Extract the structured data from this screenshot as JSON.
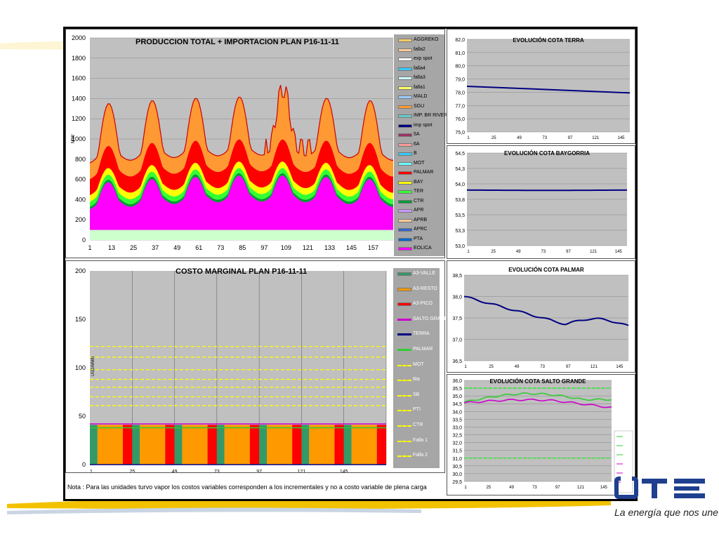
{
  "note": "Nota : Para las unidades turvo vapor los costos variables corresponden a los incrementales y no a costo variable de plena carga",
  "logo": {
    "text": "UTE",
    "slogan": "La energía que nos une"
  },
  "colors": {
    "plot_bg": "#c0c0c0",
    "legend_bg": "#a6a6a6",
    "line_navy": "#000080"
  },
  "chart_data": [
    {
      "type": "area",
      "title": "PRODUCCION TOTAL + IMPORTACION PLAN    P16-11-11",
      "ylabel": "MW",
      "ylim": [
        0,
        2000
      ],
      "yticks": [
        "0",
        "200",
        "400",
        "600",
        "800",
        "1000",
        "1200",
        "1400",
        "1600",
        "1800",
        "2000"
      ],
      "xticks": [
        "1",
        "13",
        "25",
        "37",
        "49",
        "61",
        "73",
        "85",
        "97",
        "109",
        "121",
        "133",
        "145",
        "157"
      ],
      "x_count": 168,
      "legend": [
        {
          "name": "AGGREKO",
          "color": "#ffcc66"
        },
        {
          "name": "falla2",
          "color": "#ffcc99"
        },
        {
          "name": "exp spot",
          "color": "#ffffff"
        },
        {
          "name": "falla4",
          "color": "#33ccff"
        },
        {
          "name": "falla3",
          "color": "#ccffff"
        },
        {
          "name": "falla1",
          "color": "#ffff66"
        },
        {
          "name": "MALD",
          "color": "#99ccff"
        },
        {
          "name": "SGU",
          "color": "#ff9933"
        },
        {
          "name": "IMP. BR RIVERA",
          "color": "#66cccc"
        },
        {
          "name": "imp spot",
          "color": "#000080"
        },
        {
          "name": "5A",
          "color": "#993366"
        },
        {
          "name": "6A",
          "color": "#ff9999"
        },
        {
          "name": "B",
          "color": "#33ccff"
        },
        {
          "name": "MOT",
          "color": "#66ffff"
        },
        {
          "name": "PALMAR",
          "color": "#ff0000"
        },
        {
          "name": "BAY",
          "color": "#ffff00"
        },
        {
          "name": "TER",
          "color": "#33ff33"
        },
        {
          "name": "CTR",
          "color": "#009933"
        },
        {
          "name": "APR",
          "color": "#cc99ff"
        },
        {
          "name": "APRB",
          "color": "#ffcc99"
        },
        {
          "name": "APRC",
          "color": "#3366cc"
        },
        {
          "name": "PTA",
          "color": "#0066cc"
        },
        {
          "name": "EOLICA",
          "color": "#ff00ff"
        }
      ],
      "series": [
        {
          "name": "EOLICA_base",
          "color": "#ccffcc",
          "values_note": "constant ~100 MW"
        },
        {
          "name": "EOLICA",
          "color": "#ff00ff"
        },
        {
          "name": "CTR",
          "color": "#009933"
        },
        {
          "name": "TER",
          "color": "#33ff33"
        },
        {
          "name": "BAY",
          "color": "#ffff00"
        },
        {
          "name": "PALMAR",
          "color": "#ff0000"
        },
        {
          "name": "SGU",
          "color": "#ff9933"
        }
      ]
    },
    {
      "type": "bar",
      "title": "COSTO MARGINAL PLAN    P16-11-11",
      "ylabel": "USD/MWh",
      "ylim": [
        0,
        200
      ],
      "yticks": [
        "0",
        "50",
        "100",
        "150",
        "200"
      ],
      "xticks": [
        "1",
        "25",
        "49",
        "73",
        "97",
        "121",
        "145"
      ],
      "legend": [
        {
          "name": "A3-VALLE",
          "color": "#339966",
          "style": "bar"
        },
        {
          "name": "A3-RESTO",
          "color": "#ff9900",
          "style": "bar"
        },
        {
          "name": "A3-PICO",
          "color": "#ff0000",
          "style": "bar"
        },
        {
          "name": "SALTO GRANDE",
          "color": "#cc00cc",
          "style": "line"
        },
        {
          "name": "TERRA",
          "color": "#000080",
          "style": "line"
        },
        {
          "name": "PALMAR",
          "color": "#33cc33",
          "style": "line"
        },
        {
          "name": "MOT",
          "color": "#ffff00",
          "style": "dash"
        },
        {
          "name": "6ta",
          "color": "#ffff00",
          "style": "dash"
        },
        {
          "name": "SB",
          "color": "#ffff00",
          "style": "dash"
        },
        {
          "name": "PTI",
          "color": "#ffff00",
          "style": "dash"
        },
        {
          "name": "CTR",
          "color": "#ffff00",
          "style": "dash"
        },
        {
          "name": "Falla 1",
          "color": "#ffff00",
          "style": "dash"
        },
        {
          "name": "Falla 2",
          "color": "#ffff00",
          "style": "dash"
        }
      ],
      "bar_level": 41,
      "line_levels": [
        {
          "name": "SALTO GRANDE",
          "value": 42
        },
        {
          "name": "PALMAR",
          "value": 38
        },
        {
          "name": "TERRA",
          "value": 0
        }
      ],
      "dashed_levels": [
        61,
        70,
        80,
        88,
        98,
        111,
        122
      ]
    },
    {
      "type": "line",
      "title": "EVOLUCIÓN COTA TERRA",
      "ylim": [
        75.0,
        82.0
      ],
      "yticks": [
        "75,0",
        "76,0",
        "77,0",
        "78,0",
        "79,0",
        "80,0",
        "81,0",
        "82,0"
      ],
      "xticks": [
        "1",
        "25",
        "49",
        "73",
        "97",
        "121",
        "145"
      ],
      "series": [
        {
          "name": "",
          "start": 78.45,
          "end": 77.95
        }
      ]
    },
    {
      "type": "line",
      "title": "EVOLUCIÓN COTA BAYGORRIA",
      "ylim": [
        53.0,
        54.5
      ],
      "yticks": [
        "53,0",
        "53,3",
        "53,5",
        "53,8",
        "54,0",
        "54,3",
        "54,5"
      ],
      "xticks": [
        "1",
        "25",
        "49",
        "73",
        "97",
        "121",
        "145"
      ],
      "series": [
        {
          "name": "",
          "values_note": "~53.9 flat"
        }
      ]
    },
    {
      "type": "line",
      "title": "EVOLUCIÓN COTA PALMAR",
      "ylim": [
        36.5,
        38.5
      ],
      "yticks": [
        "36,5",
        "37,0",
        "37,5",
        "38,0",
        "38,5"
      ],
      "xticks": [
        "1",
        "25",
        "49",
        "73",
        "97",
        "121",
        "145"
      ],
      "series": [
        {
          "name": "",
          "start": 38.0,
          "end": 37.3
        }
      ]
    },
    {
      "type": "line",
      "title": "EVOLUCIÓN COTA SALTO GRANDE",
      "ylim": [
        29.5,
        36.0
      ],
      "yticks": [
        "29,5",
        "30,0",
        "30,5",
        "31,0",
        "31,5",
        "32,0",
        "32,5",
        "33,0",
        "33,5",
        "34,0",
        "34,5",
        "35,0",
        "35,5",
        "36,0"
      ],
      "xticks": [
        "1",
        "25",
        "49",
        "73",
        "97",
        "121",
        "145"
      ],
      "reference_lines": [
        35.5,
        31.0
      ]
    }
  ]
}
